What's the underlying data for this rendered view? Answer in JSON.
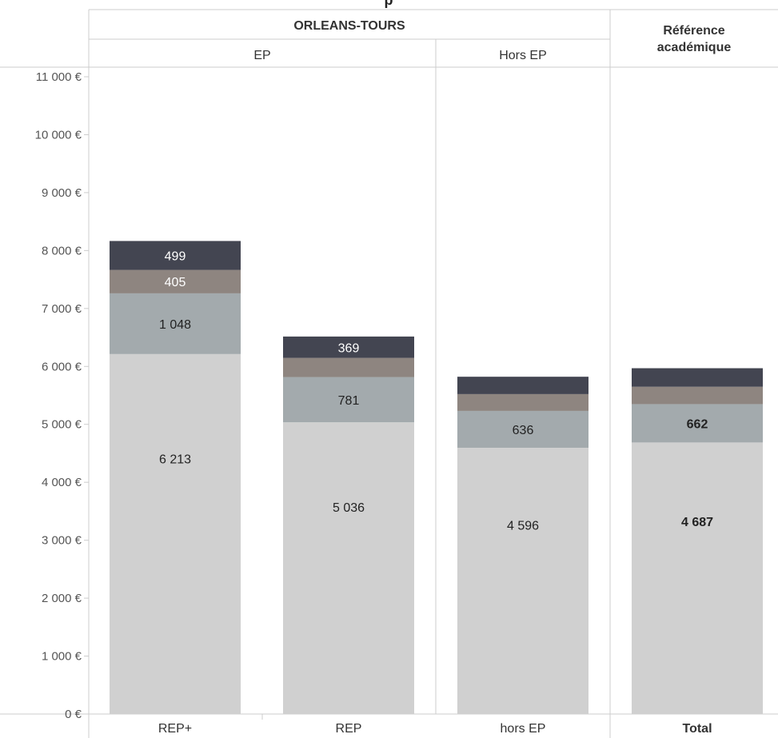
{
  "header": {
    "title_fragment": "p",
    "group_label": "ORLEANS-TOURS",
    "ep_label": "EP",
    "hors_ep_label": "Hors EP",
    "reference_line1": "Référence",
    "reference_line2": "académique"
  },
  "colors": {
    "segment_base": "#d0d0d0",
    "segment_2": "#a3aaad",
    "segment_3": "#8e8580",
    "segment_4": "#434551",
    "grid": "#cccccc",
    "axis_text": "#555555"
  },
  "chart_data": {
    "type": "bar",
    "stacked": true,
    "categories": [
      "REP+",
      "REP",
      "hors EP",
      "Total"
    ],
    "bold_categories": [
      "Total"
    ],
    "ylim": [
      0,
      11000
    ],
    "yticks": [
      0,
      1000,
      2000,
      3000,
      4000,
      5000,
      6000,
      7000,
      8000,
      9000,
      10000,
      11000
    ],
    "ytick_labels": [
      "0 €",
      "1 000 €",
      "2 000 €",
      "3 000 €",
      "4 000 €",
      "5 000 €",
      "6 000 €",
      "7 000 €",
      "8 000 €",
      "9 000 €",
      "10 000 €",
      "11 000 €"
    ],
    "series": [
      {
        "values": [
          6213,
          5036,
          4596,
          4687
        ],
        "labels": [
          "6 213",
          "5 036",
          "4 596",
          "4 687"
        ]
      },
      {
        "values": [
          1048,
          781,
          636,
          662
        ],
        "labels": [
          "1 048",
          "781",
          "636",
          "662"
        ]
      },
      {
        "values": [
          405,
          330,
          290,
          300
        ],
        "labels": [
          "405",
          "",
          "",
          ""
        ]
      },
      {
        "values": [
          499,
          369,
          300,
          320
        ],
        "labels": [
          "499",
          "369",
          "",
          ""
        ]
      }
    ]
  }
}
